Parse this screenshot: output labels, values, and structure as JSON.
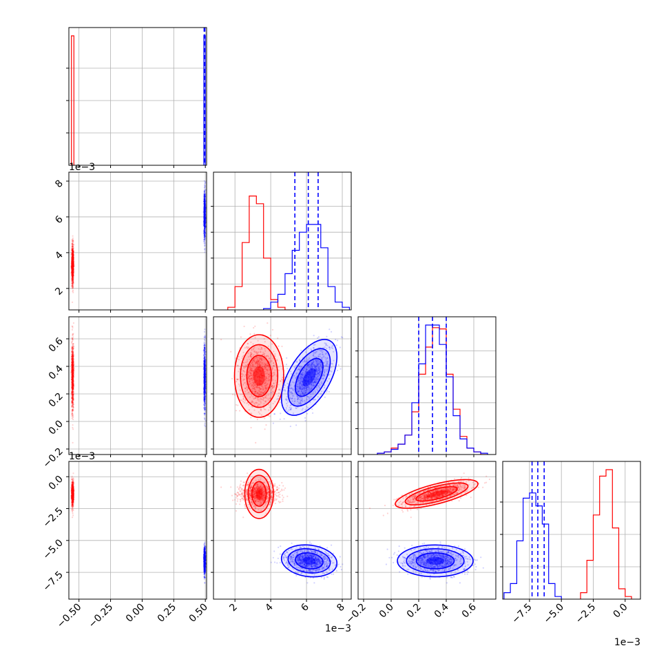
{
  "chart_data": {
    "type": "corner",
    "colors": {
      "red": "#ff0000",
      "blue": "#0000ff",
      "grid": "#b0b0b0"
    },
    "grid": true,
    "series_colors": [
      "red",
      "blue"
    ],
    "exponent_labels": [
      {
        "text": "1e−3",
        "anchor": "row1-top"
      },
      {
        "text": "1e−3",
        "anchor": "row3-top"
      },
      {
        "text": "1e−3",
        "anchor": "col1-bottom"
      },
      {
        "text": "1e−3",
        "anchor": "col3-bottom"
      }
    ],
    "params": [
      {
        "lim": [
          -0.58,
          0.51
        ],
        "ticks": [
          -0.5,
          -0.25,
          0.0,
          0.25,
          0.5
        ],
        "tick_labels": [
          "−0.50",
          "−0.25",
          "0.00",
          "0.25",
          "0.50"
        ]
      },
      {
        "lim": [
          0.8,
          8.5
        ],
        "ticks": [
          2,
          4,
          6,
          8
        ],
        "tick_labels": [
          "2",
          "4",
          "6",
          "8"
        ]
      },
      {
        "lim": [
          -0.24,
          0.76
        ],
        "ticks": [
          -0.2,
          0.0,
          0.2,
          0.4,
          0.6
        ],
        "tick_labels": [
          "−0.2",
          "0.0",
          "0.2",
          "0.4",
          "0.6"
        ]
      },
      {
        "lim": [
          -9.6,
          1.2
        ],
        "ticks": [
          -7.5,
          -5.0,
          -2.5,
          0.0
        ],
        "tick_labels": [
          "−7.5",
          "−5.0",
          "−2.5",
          "0.0"
        ]
      }
    ],
    "red": {
      "mean": [
        -0.55,
        3.35,
        0.33,
        -1.35
      ],
      "std": [
        0.004,
        0.55,
        0.12,
        0.45
      ],
      "corr23": 0.7,
      "hist0": {
        "edges": [
          -0.56,
          -0.54
        ],
        "counts": [
          1.0
        ]
      },
      "hist1": {
        "edges": [
          1.6,
          2.0,
          2.4,
          2.8,
          3.2,
          3.6,
          4.0,
          4.4,
          4.8,
          5.2
        ],
        "counts": [
          0.02,
          0.18,
          0.52,
          0.88,
          0.82,
          0.4,
          0.08,
          0.02,
          0.0
        ]
      },
      "hist2": {
        "edges": [
          -0.1,
          -0.05,
          0.0,
          0.05,
          0.1,
          0.15,
          0.2,
          0.25,
          0.3,
          0.35,
          0.4,
          0.45,
          0.5,
          0.55,
          0.6,
          0.65,
          0.7
        ],
        "counts": [
          0.01,
          0.02,
          0.05,
          0.08,
          0.15,
          0.33,
          0.62,
          0.83,
          0.98,
          0.97,
          0.62,
          0.35,
          0.14,
          0.05,
          0.02,
          0.0
        ]
      },
      "hist3": {
        "edges": [
          -3.5,
          -3.0,
          -2.5,
          -2.0,
          -1.5,
          -1.0,
          -0.5,
          0.0,
          0.5
        ],
        "counts": [
          0.05,
          0.3,
          0.65,
          0.95,
          1.0,
          0.55,
          0.08,
          0.02
        ]
      }
    },
    "blue": {
      "mean": [
        0.495,
        6.15,
        0.32,
        -6.6
      ],
      "std": [
        0.003,
        0.62,
        0.11,
        0.5
      ],
      "corr12": 0.55,
      "corr13": -0.15,
      "hist0": {
        "edges": [
          0.488,
          0.492,
          0.496,
          0.5
        ],
        "counts": [
          1.0,
          1.0,
          1.0
        ]
      },
      "hist1": {
        "edges": [
          3.6,
          4.0,
          4.4,
          4.8,
          5.2,
          5.6,
          6.0,
          6.4,
          6.8,
          7.2,
          7.6,
          8.0,
          8.4
        ],
        "counts": [
          0.01,
          0.06,
          0.12,
          0.28,
          0.46,
          0.6,
          0.66,
          0.66,
          0.48,
          0.18,
          0.06,
          0.02
        ]
      },
      "hist2": {
        "edges": [
          -0.1,
          -0.05,
          0.0,
          0.05,
          0.1,
          0.15,
          0.2,
          0.25,
          0.3,
          0.35,
          0.4,
          0.45,
          0.5,
          0.55,
          0.6,
          0.65,
          0.7
        ],
        "counts": [
          0.01,
          0.02,
          0.04,
          0.08,
          0.15,
          0.4,
          0.7,
          1.0,
          1.0,
          0.85,
          0.6,
          0.3,
          0.12,
          0.05,
          0.02,
          0.01
        ]
      },
      "hist3": {
        "edges": [
          -9.5,
          -9.0,
          -8.5,
          -8.0,
          -7.5,
          -7.0,
          -6.5,
          -6.0,
          -5.5,
          -5.0
        ],
        "counts": [
          0.05,
          0.12,
          0.45,
          0.78,
          0.82,
          0.72,
          0.58,
          0.12,
          0.02
        ]
      },
      "quantiles": {
        "p1": [
          5.35,
          6.1,
          6.65
        ],
        "p2": [
          0.2,
          0.3,
          0.4
        ],
        "p3": [
          -7.3,
          -6.85,
          -6.35
        ]
      }
    }
  }
}
